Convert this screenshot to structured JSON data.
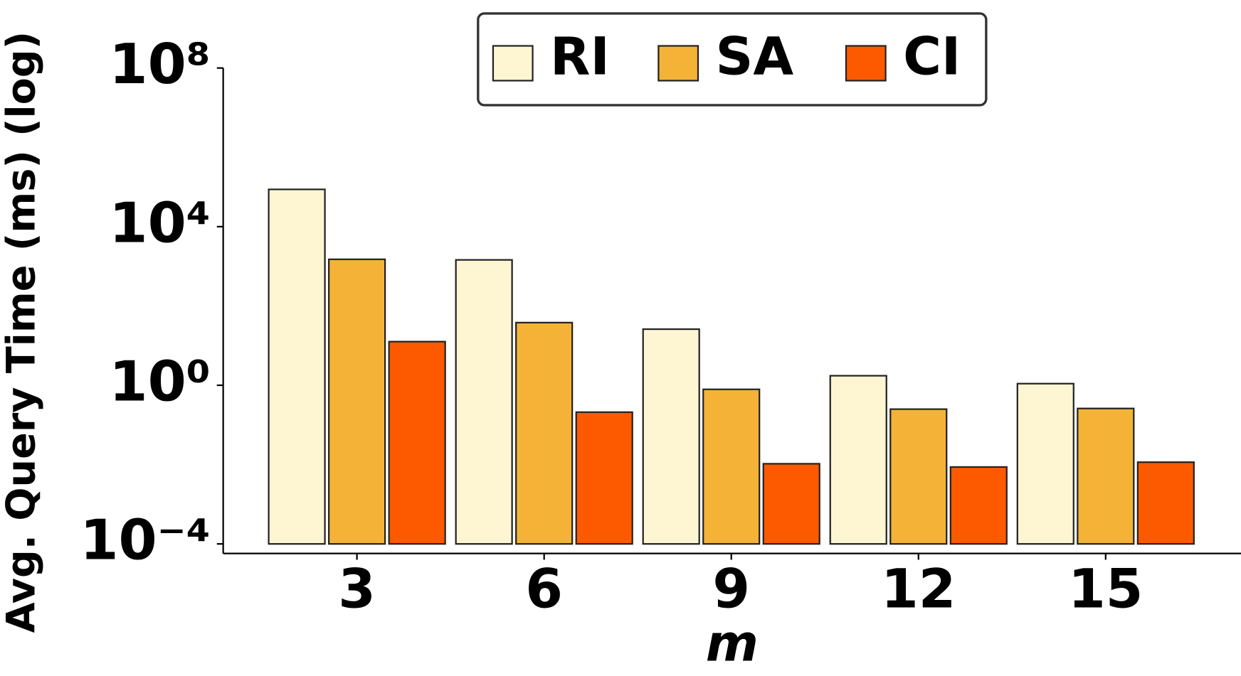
{
  "chart_data": {
    "type": "bar",
    "x_label": "m",
    "y_label": "Avg. Query Time (ms) (log)",
    "categories": [
      "3",
      "6",
      "9",
      "12",
      "15"
    ],
    "series": [
      {
        "name": "RI",
        "color": "#fef6d3",
        "values": [
          87000,
          1450,
          26,
          1.74,
          1.1
        ]
      },
      {
        "name": "SA",
        "color": "#f4b336",
        "values": [
          1500,
          38,
          0.79,
          0.25,
          0.26
        ]
      },
      {
        "name": "CI",
        "color": "#fd5a00",
        "values": [
          12.6,
          0.21,
          0.0105,
          0.0087,
          0.0115
        ]
      }
    ],
    "log_scale": true,
    "ylim": [
      5.75e-05,
      100000000
    ],
    "yticks": [
      {
        "value": 0.0001,
        "label": "10⁻⁴"
      },
      {
        "value": 1,
        "label": "10⁰"
      },
      {
        "value": 10000,
        "label": "10⁴"
      },
      {
        "value": 100000000,
        "label": "10⁸"
      }
    ],
    "legend": "upper center"
  }
}
